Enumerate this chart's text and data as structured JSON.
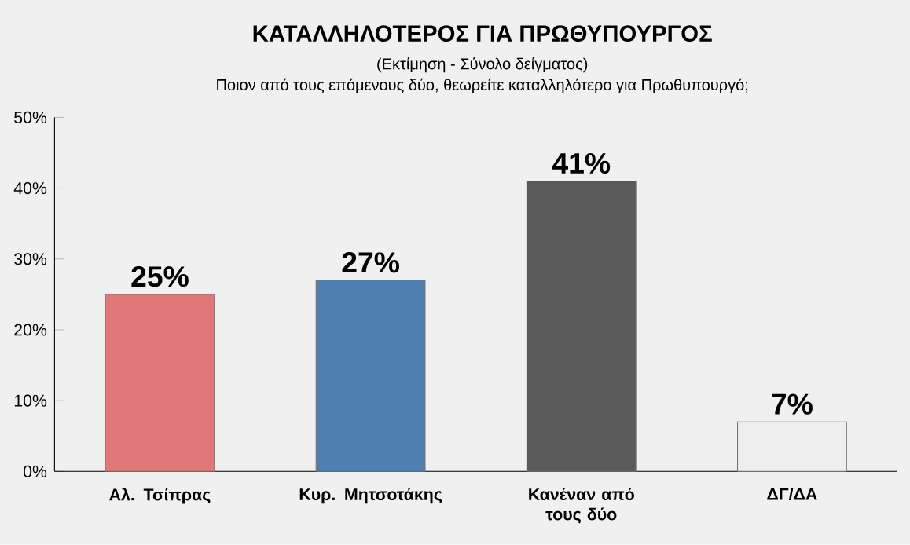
{
  "chart_data": {
    "type": "bar",
    "title": "ΚΑΤΑΛΛΗΛΟΤΕΡΟΣ ΓΙΑ ΠΡΩΘΥΠΟΥΡΓΟΣ",
    "subtitle": "(Εκτίμηση - Σύνολο δείγματος)",
    "annotations": [
      "Ποιον από τους επόμενους δύο, θεωρείτε καταλληλότερο για Πρωθυπουργό;"
    ],
    "categories": [
      "Αλ. Τσίπρας",
      "Κυρ. Μητσοτάκης",
      "Κανέναν από τους δύο",
      "ΔΓ/ΔΑ"
    ],
    "values": [
      25,
      27,
      41,
      7
    ],
    "colors": [
      "#e07878",
      "#4f7fb0",
      "#5a5a5a",
      "#eeeeee"
    ],
    "value_labels": [
      "25%",
      "27%",
      "41%",
      "7%"
    ],
    "ylim": [
      0,
      50
    ],
    "yticks": [
      {
        "value": 0,
        "label": "0%"
      },
      {
        "value": 10,
        "label": "10%"
      },
      {
        "value": 20,
        "label": "20%"
      },
      {
        "value": 30,
        "label": "30%"
      },
      {
        "value": 40,
        "label": "40%"
      },
      {
        "value": 50,
        "label": "50%"
      }
    ],
    "grid": false
  }
}
